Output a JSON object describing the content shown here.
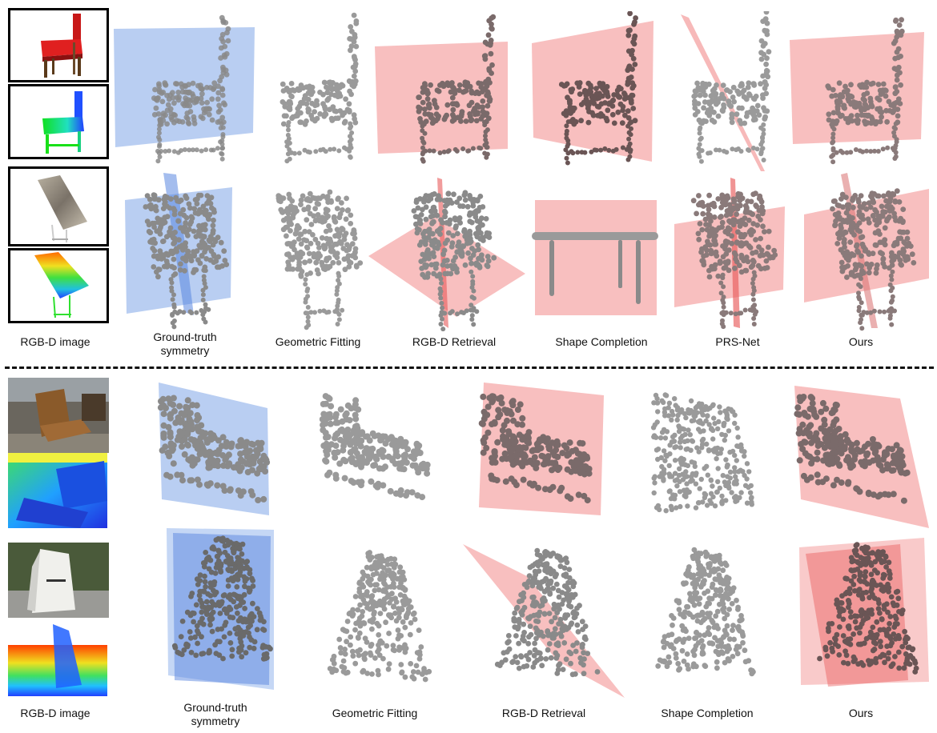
{
  "top_section": {
    "column_labels": [
      "RGB-D image",
      "Ground-truth\nsymmetry",
      "Geometric Fitting",
      "RGB-D Retrieval",
      "Shape Completion",
      "PRS-Net",
      "Ours"
    ]
  },
  "bottom_section": {
    "column_labels": [
      "RGB-D image",
      "Ground-truth\nsymmetry",
      "Geometric Fitting",
      "RGB-D Retrieval",
      "Shape Completion",
      "Ours"
    ]
  },
  "colors": {
    "ground_truth_plane": "#7fa6e8",
    "predicted_plane": "#f28a8a",
    "points": "#9a9a9a",
    "points_dark": "#5a4a4a",
    "frame": "#000000"
  },
  "icons": [
    "chair-rgb-icon",
    "chair-depth-icon",
    "table-rgb-icon",
    "table-depth-icon",
    "armchair-photo-icon",
    "armchair-depth-icon",
    "sign-photo-icon",
    "sign-depth-icon"
  ]
}
